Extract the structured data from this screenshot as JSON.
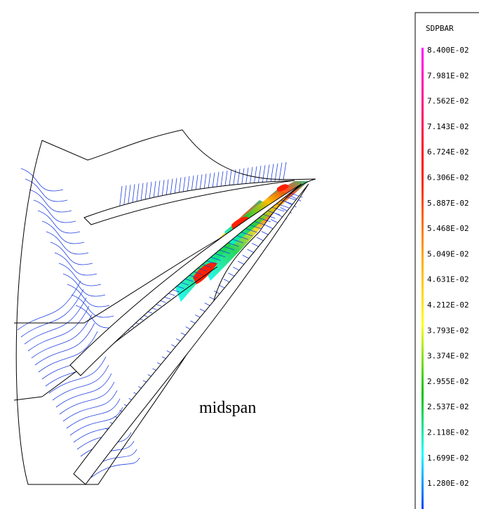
{
  "legend": {
    "title": "SDPBAR",
    "labels": [
      "8.400E-02",
      "7.981E-02",
      "7.562E-02",
      "7.143E-02",
      "6.724E-02",
      "6.306E-02",
      "5.887E-02",
      "5.468E-02",
      "5.049E-02",
      "4.631E-02",
      "4.212E-02",
      "3.793E-02",
      "3.374E-02",
      "2.955E-02",
      "2.537E-02",
      "2.118E-02",
      "1.699E-02",
      "1.280E-02"
    ]
  },
  "annotation": "midspan"
}
